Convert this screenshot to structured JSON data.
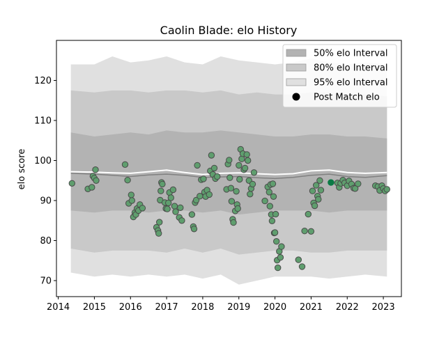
{
  "chart_data": {
    "type": "scatter",
    "title": "Caolin Blade: elo History",
    "xlabel": "",
    "ylabel": "elo score",
    "xlim": [
      2013.95,
      2023.5
    ],
    "ylim": [
      66,
      130
    ],
    "x_ticks": [
      2014,
      2015,
      2016,
      2017,
      2018,
      2019,
      2020,
      2021,
      2022,
      2023
    ],
    "y_ticks": [
      70,
      80,
      90,
      100,
      110,
      120
    ],
    "grid": false,
    "legend_position": "top-right",
    "legend": [
      {
        "label": "50% elo Interval",
        "kind": "band",
        "color": "#b3b3b3"
      },
      {
        "label": "80% elo Interval",
        "kind": "band",
        "color": "#c9c9c9"
      },
      {
        "label": "95% elo Interval",
        "kind": "band",
        "color": "#e0e0e0"
      },
      {
        "label": "Post Match elo",
        "kind": "marker",
        "color": "#000000"
      }
    ],
    "colors": {
      "band50": "#b3b3b3",
      "band80": "#c9c9c9",
      "band95": "#e0e0e0",
      "point_fill": "#5f9e6e",
      "point_edge": "#4a4a4a",
      "highlight": "#0a7a45",
      "median_line": "#808080",
      "mean_line": "#ffffff"
    },
    "bands": {
      "x": [
        2014.35,
        2015.0,
        2015.5,
        2016.0,
        2016.5,
        2017.0,
        2017.5,
        2018.0,
        2018.5,
        2019.0,
        2019.5,
        2020.0,
        2020.5,
        2021.0,
        2021.5,
        2022.0,
        2022.5,
        2023.1
      ],
      "p95_low": [
        72,
        71,
        71.5,
        71,
        71.5,
        71,
        71.5,
        70.5,
        71.5,
        69,
        70,
        71,
        71,
        71,
        70.5,
        71,
        71.5,
        71
      ],
      "p80_low": [
        78,
        77,
        77.5,
        77.5,
        77.5,
        77,
        78,
        77,
        78,
        76.5,
        77,
        77.5,
        77.5,
        77,
        77,
        77.5,
        77.5,
        77.5
      ],
      "p50_low": [
        87.5,
        87,
        87.5,
        87.5,
        87,
        87.5,
        87.5,
        87,
        87.5,
        86.5,
        87,
        87.5,
        87.5,
        87.5,
        87,
        87.5,
        87.5,
        87.5
      ],
      "p50_high": [
        107,
        106,
        106.5,
        107,
        106.5,
        107.5,
        107,
        107,
        107.5,
        107,
        106.5,
        106,
        106,
        106.5,
        106.5,
        106,
        106,
        105.5
      ],
      "p80_high": [
        117.5,
        117,
        117.5,
        117.5,
        117,
        117.5,
        117.5,
        117,
        117.5,
        116.5,
        117,
        116.5,
        116.5,
        117,
        117,
        116.5,
        116.5,
        116
      ],
      "p95_high": [
        124,
        124,
        126,
        124.5,
        125,
        126,
        124.5,
        124,
        126,
        125,
        124.5,
        124,
        124.5,
        125.5,
        124.5,
        124,
        124.5,
        124
      ]
    },
    "median_line": {
      "x": [
        2014.35,
        2015.0,
        2015.5,
        2016.0,
        2016.5,
        2017.0,
        2017.5,
        2018.0,
        2018.5,
        2019.0,
        2019.5,
        2020.0,
        2020.5,
        2021.0,
        2021.5,
        2022.0,
        2022.5,
        2023.1
      ],
      "y": [
        96.8,
        96.6,
        96.3,
        96.0,
        96.4,
        96.6,
        96.3,
        95.8,
        95.9,
        96.0,
        95.7,
        95.5,
        95.8,
        96.3,
        96.6,
        96.0,
        95.8,
        96.2
      ]
    },
    "mean_line": {
      "x": [
        2014.35,
        2015.0,
        2015.5,
        2016.0,
        2016.5,
        2017.0,
        2017.5,
        2018.0,
        2018.5,
        2019.0,
        2019.5,
        2020.0,
        2020.5,
        2021.0,
        2021.5,
        2022.0,
        2022.5,
        2023.1
      ],
      "y": [
        97.2,
        97.1,
        96.9,
        96.8,
        97.2,
        97.6,
        97.0,
        96.5,
        96.8,
        96.9,
        96.7,
        96.5,
        96.7,
        97.4,
        97.6,
        97.0,
        96.8,
        97.0
      ]
    },
    "highlight_point": {
      "x": 2021.55,
      "y": 94.5
    },
    "points": [
      [
        2014.38,
        94.3
      ],
      [
        2014.82,
        92.9
      ],
      [
        2014.93,
        93.3
      ],
      [
        2014.96,
        96.1
      ],
      [
        2015.0,
        95.6
      ],
      [
        2015.03,
        97.7
      ],
      [
        2015.05,
        95.0
      ],
      [
        2015.85,
        99.0
      ],
      [
        2015.92,
        95.1
      ],
      [
        2015.95,
        89.3
      ],
      [
        2016.02,
        91.4
      ],
      [
        2016.04,
        90.0
      ],
      [
        2016.08,
        85.9
      ],
      [
        2016.12,
        87.0
      ],
      [
        2016.15,
        86.5
      ],
      [
        2016.18,
        88.0
      ],
      [
        2016.22,
        87.5
      ],
      [
        2016.26,
        89.0
      ],
      [
        2016.33,
        88.1
      ],
      [
        2016.72,
        83.3
      ],
      [
        2016.76,
        82.5
      ],
      [
        2016.78,
        81.8
      ],
      [
        2016.8,
        84.6
      ],
      [
        2016.82,
        90.1
      ],
      [
        2016.84,
        92.4
      ],
      [
        2016.86,
        94.5
      ],
      [
        2016.88,
        94.1
      ],
      [
        2016.95,
        89.5
      ],
      [
        2016.98,
        88.0
      ],
      [
        2017.02,
        87.9
      ],
      [
        2017.05,
        89.4
      ],
      [
        2017.08,
        92.0
      ],
      [
        2017.12,
        90.7
      ],
      [
        2017.18,
        92.7
      ],
      [
        2017.22,
        88.6
      ],
      [
        2017.25,
        87.2
      ],
      [
        2017.35,
        85.8
      ],
      [
        2017.38,
        88.2
      ],
      [
        2017.42,
        85.0
      ],
      [
        2017.7,
        86.5
      ],
      [
        2017.74,
        83.5
      ],
      [
        2017.76,
        82.9
      ],
      [
        2017.79,
        89.5
      ],
      [
        2017.82,
        90.1
      ],
      [
        2017.85,
        98.8
      ],
      [
        2017.92,
        91.1
      ],
      [
        2017.96,
        95.2
      ],
      [
        2018.02,
        95.4
      ],
      [
        2018.05,
        92.1
      ],
      [
        2018.08,
        91.0
      ],
      [
        2018.12,
        92.6
      ],
      [
        2018.18,
        91.5
      ],
      [
        2018.21,
        97.4
      ],
      [
        2018.24,
        101.3
      ],
      [
        2018.28,
        96.5
      ],
      [
        2018.32,
        98.1
      ],
      [
        2018.35,
        95.5
      ],
      [
        2018.4,
        96.0
      ],
      [
        2018.66,
        92.8
      ],
      [
        2018.7,
        99.1
      ],
      [
        2018.73,
        100.1
      ],
      [
        2018.75,
        95.7
      ],
      [
        2018.78,
        93.1
      ],
      [
        2018.8,
        89.8
      ],
      [
        2018.83,
        85.3
      ],
      [
        2018.85,
        84.5
      ],
      [
        2018.9,
        87.4
      ],
      [
        2018.93,
        92.3
      ],
      [
        2018.95,
        89.0
      ],
      [
        2018.97,
        88.0
      ],
      [
        2019.0,
        98.8
      ],
      [
        2019.02,
        95.3
      ],
      [
        2019.05,
        102.8
      ],
      [
        2019.08,
        100.4
      ],
      [
        2019.11,
        101.7
      ],
      [
        2019.14,
        97.7
      ],
      [
        2019.17,
        98.1
      ],
      [
        2019.22,
        101.5
      ],
      [
        2019.25,
        100.0
      ],
      [
        2019.28,
        95.0
      ],
      [
        2019.31,
        91.6
      ],
      [
        2019.34,
        93.0
      ],
      [
        2019.38,
        94.1
      ],
      [
        2019.42,
        97.0
      ],
      [
        2019.72,
        89.9
      ],
      [
        2019.8,
        93.4
      ],
      [
        2019.84,
        92.1
      ],
      [
        2019.86,
        88.6
      ],
      [
        2019.88,
        94.0
      ],
      [
        2019.9,
        86.5
      ],
      [
        2019.92,
        84.9
      ],
      [
        2019.94,
        94.2
      ],
      [
        2019.96,
        91.0
      ],
      [
        2019.98,
        81.9
      ],
      [
        2020.0,
        82.0
      ],
      [
        2020.02,
        86.6
      ],
      [
        2020.04,
        79.8
      ],
      [
        2020.06,
        75.1
      ],
      [
        2020.08,
        73.2
      ],
      [
        2020.12,
        77.3
      ],
      [
        2020.15,
        75.8
      ],
      [
        2020.18,
        78.5
      ],
      [
        2020.65,
        75.2
      ],
      [
        2020.75,
        73.5
      ],
      [
        2020.82,
        82.4
      ],
      [
        2020.92,
        86.6
      ],
      [
        2021.0,
        82.3
      ],
      [
        2021.04,
        92.4
      ],
      [
        2021.07,
        89.4
      ],
      [
        2021.1,
        88.7
      ],
      [
        2021.14,
        93.8
      ],
      [
        2021.18,
        91.1
      ],
      [
        2021.2,
        90.3
      ],
      [
        2021.24,
        95.0
      ],
      [
        2021.27,
        92.6
      ],
      [
        2021.73,
        94.4
      ],
      [
        2021.78,
        93.3
      ],
      [
        2021.82,
        94.3
      ],
      [
        2021.88,
        95.1
      ],
      [
        2021.93,
        94.4
      ],
      [
        2022.0,
        93.7
      ],
      [
        2022.05,
        94.9
      ],
      [
        2022.12,
        94.1
      ],
      [
        2022.18,
        93.1
      ],
      [
        2022.22,
        93.0
      ],
      [
        2022.3,
        94.2
      ],
      [
        2022.78,
        93.7
      ],
      [
        2022.85,
        93.5
      ],
      [
        2022.9,
        92.5
      ],
      [
        2022.96,
        93.7
      ],
      [
        2023.0,
        93.0
      ],
      [
        2023.05,
        92.4
      ],
      [
        2023.1,
        92.8
      ]
    ]
  }
}
